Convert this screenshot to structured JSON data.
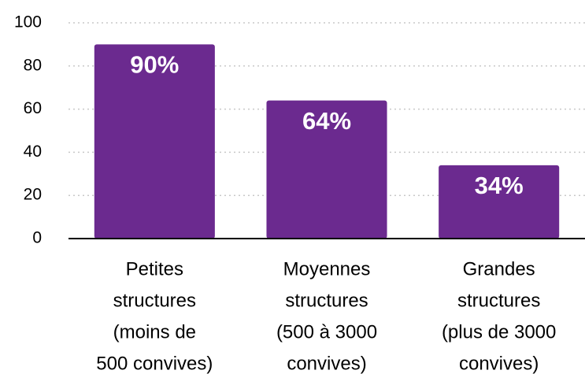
{
  "chart_data": {
    "type": "bar",
    "categories": [
      [
        "Petites",
        "structures",
        "(moins de",
        "500 convives)"
      ],
      [
        "Moyennes",
        "structures",
        "(500 à 3000",
        "convives)"
      ],
      [
        "Grandes",
        "structures",
        "(plus de 3000",
        "convives)"
      ]
    ],
    "values": [
      90,
      64,
      34
    ],
    "value_labels": [
      "90%",
      "64%",
      "34%"
    ],
    "color": "#6b2a8f",
    "ylim": [
      0,
      100
    ],
    "yticks": [
      0,
      20,
      40,
      60,
      80,
      100
    ],
    "grid": true
  }
}
